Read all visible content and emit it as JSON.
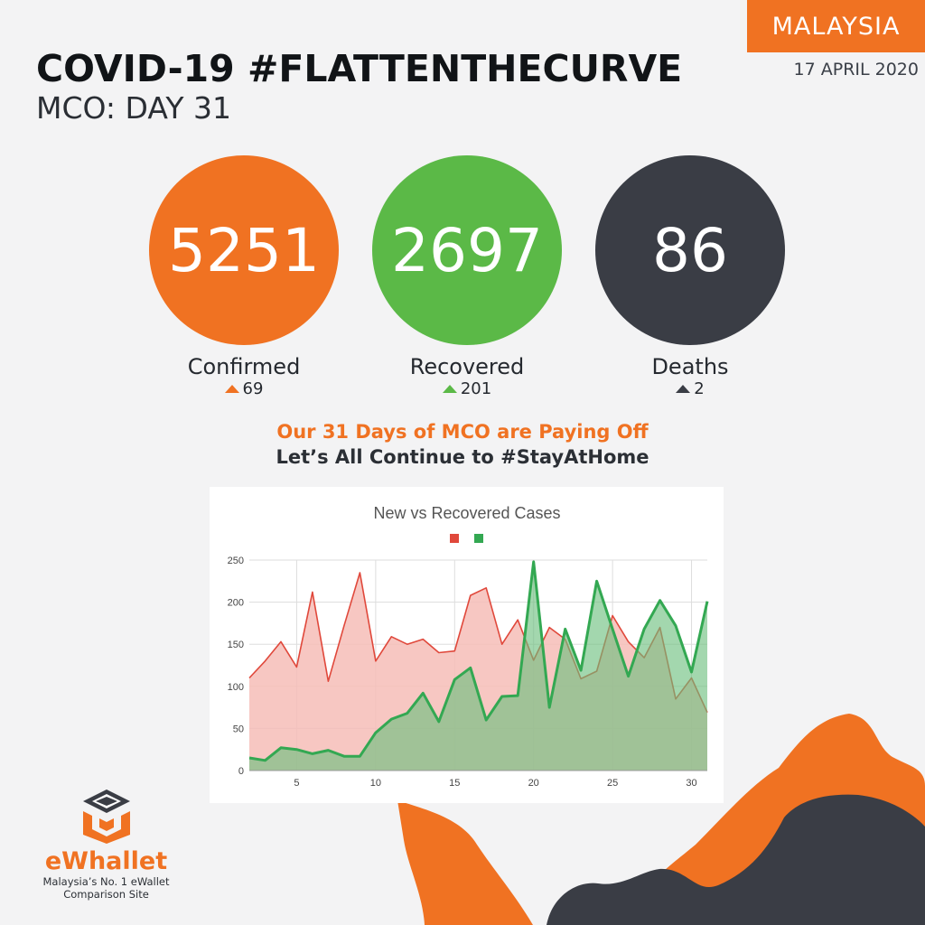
{
  "header": {
    "country": "MALAYSIA",
    "date": "17 APRIL 2020",
    "title": "COVID-19 #FLATTENTHECURVE",
    "subtitle": "MCO: DAY 31"
  },
  "stats": [
    {
      "value": "5251",
      "label": "Confirmed",
      "delta": "69",
      "color": "#f07222"
    },
    {
      "value": "2697",
      "label": "Recovered",
      "delta": "201",
      "color": "#5bb947"
    },
    {
      "value": "86",
      "label": "Deaths",
      "delta": "2",
      "color": "#3a3d45"
    }
  ],
  "tagline": {
    "line1": "Our 31 Days of MCO are Paying Off",
    "line2": "Let’s All Continue to #StayAtHome"
  },
  "brand": {
    "name": "eWhallet",
    "tagline1": "Malaysia’s No. 1 eWallet",
    "tagline2": "Comparison  Site"
  },
  "colors": {
    "new_line": "#e0483b",
    "new_fill": "#f6bdb7",
    "recovered_line": "#33a852",
    "recovered_fill": "#6bbf7c",
    "map_orange": "#f07222",
    "map_dark": "#3a3d45"
  },
  "chart_data": {
    "type": "area",
    "title": "New vs Recovered Cases",
    "xlabel": "",
    "ylabel": "",
    "x": [
      2,
      3,
      4,
      5,
      6,
      7,
      8,
      9,
      10,
      11,
      12,
      13,
      14,
      15,
      16,
      17,
      18,
      19,
      20,
      21,
      22,
      23,
      24,
      25,
      26,
      27,
      28,
      29,
      30,
      31
    ],
    "xticks": [
      5,
      10,
      15,
      20,
      25,
      30
    ],
    "yticks": [
      0,
      50,
      100,
      150,
      200,
      250
    ],
    "ylim": [
      0,
      250
    ],
    "xlim": [
      2,
      31
    ],
    "grid": true,
    "legend": "top-center",
    "series": [
      {
        "values": [
          110,
          130,
          153,
          123,
          212,
          106,
          172,
          235,
          130,
          159,
          150,
          156,
          140,
          142,
          208,
          217,
          150,
          179,
          131,
          170,
          156,
          109,
          118,
          184,
          153,
          134,
          170,
          85,
          110,
          69
        ]
      },
      {
        "values": [
          15,
          12,
          27,
          25,
          20,
          24,
          17,
          17,
          45,
          61,
          68,
          92,
          58,
          108,
          122,
          60,
          88,
          89,
          248,
          75,
          168,
          119,
          225,
          168,
          112,
          168,
          202,
          172,
          117,
          201
        ]
      }
    ]
  }
}
